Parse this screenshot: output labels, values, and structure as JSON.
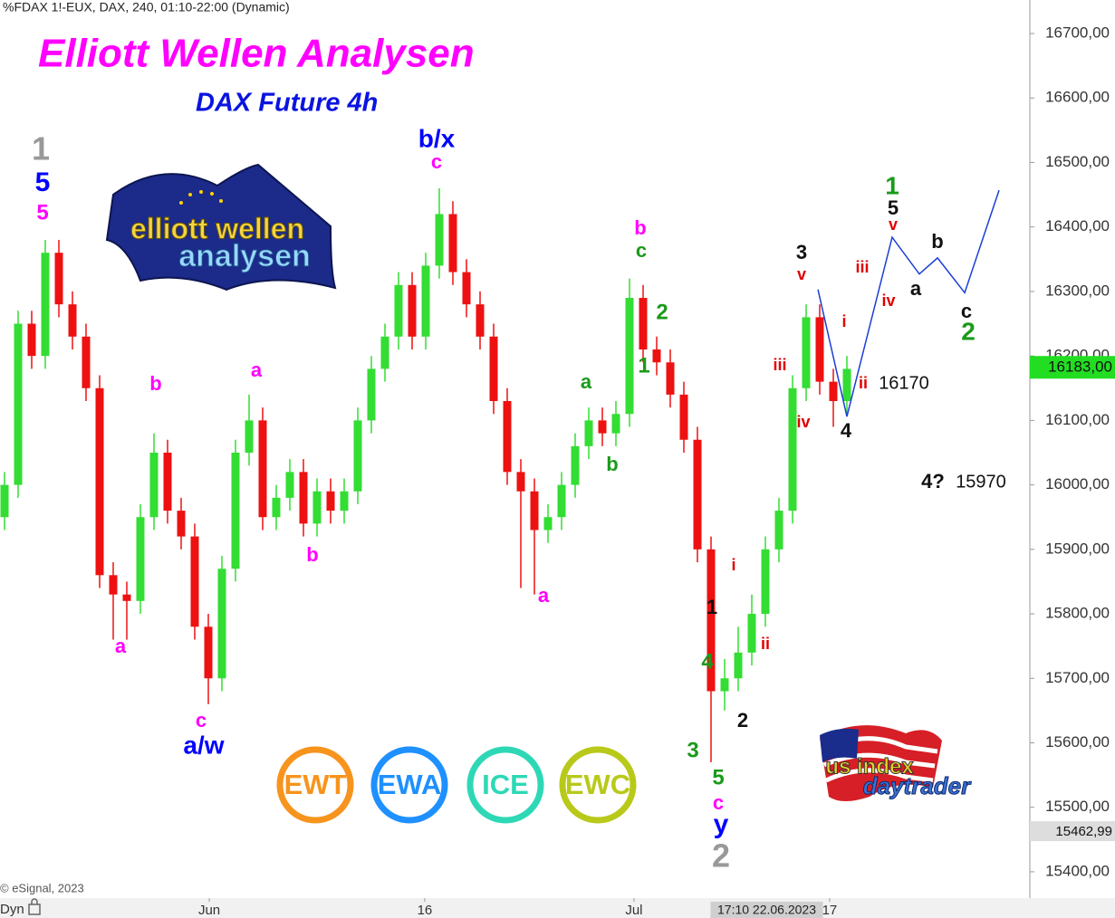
{
  "chart_data": {
    "type": "candlestick",
    "header": "%FDAX 1!-EUX, DAX, 240, 01:10-22:00 (Dynamic)",
    "title": "Elliott Wellen Analysen",
    "subtitle": "DAX Future 4h",
    "copyright": "© eSignal, 2023",
    "corner_label": "Dyn",
    "cursor_label": {
      "value": 56.1,
      "label": "17:10 22.06.2023"
    },
    "up_color": "#33dd33",
    "down_color": "#ee1111",
    "x": [
      0,
      1,
      2,
      3,
      4,
      5,
      6,
      7,
      8,
      9,
      10,
      11,
      12,
      13,
      14,
      15,
      16,
      17,
      18,
      19,
      20,
      21,
      22,
      23,
      24,
      25,
      26,
      27,
      28,
      29,
      30,
      31,
      32,
      33,
      34,
      35,
      36,
      37,
      38,
      39,
      40,
      41,
      42,
      43,
      44,
      45,
      46,
      47,
      48,
      49,
      50,
      51,
      52,
      53,
      54,
      55,
      56,
      57,
      58,
      59,
      60,
      61,
      62
    ],
    "open": [
      15950,
      16000,
      16250,
      16200,
      16360,
      16280,
      16230,
      16150,
      15860,
      15830,
      15820,
      15950,
      16050,
      15960,
      15920,
      15780,
      15700,
      15870,
      16050,
      16100,
      15950,
      15980,
      16020,
      15940,
      15990,
      15960,
      15990,
      16100,
      16180,
      16230,
      16310,
      16230,
      16340,
      16420,
      16330,
      16280,
      16230,
      16130,
      16020,
      15990,
      15930,
      15950,
      16000,
      16060,
      16100,
      16080,
      16110,
      16290,
      16210,
      16190,
      16140,
      16070,
      15900,
      15680,
      15700,
      15740,
      15800,
      15900,
      15960,
      16150,
      16260,
      16160,
      16130
    ],
    "high": [
      16020,
      16270,
      16270,
      16380,
      16380,
      16300,
      16250,
      16170,
      15880,
      15850,
      15970,
      16080,
      16070,
      15980,
      15940,
      15800,
      15890,
      16070,
      16140,
      16120,
      16000,
      16040,
      16040,
      16010,
      16010,
      16010,
      16120,
      16200,
      16250,
      16330,
      16330,
      16360,
      16460,
      16440,
      16350,
      16300,
      16250,
      16150,
      16040,
      16010,
      15970,
      16020,
      16080,
      16120,
      16120,
      16130,
      16320,
      16310,
      16230,
      16210,
      16160,
      16090,
      15920,
      15730,
      15780,
      15830,
      15920,
      15980,
      16170,
      16280,
      16280,
      16180,
      16200
    ],
    "low": [
      15930,
      15980,
      16180,
      16180,
      16260,
      16210,
      16130,
      15840,
      15760,
      15760,
      15800,
      15930,
      15940,
      15900,
      15760,
      15660,
      15680,
      15850,
      16030,
      15930,
      15930,
      15960,
      15920,
      15920,
      15940,
      15940,
      15970,
      16080,
      16160,
      16210,
      16210,
      16210,
      16320,
      16310,
      16260,
      16210,
      16110,
      16000,
      15840,
      15830,
      15910,
      15930,
      15980,
      16040,
      16060,
      16060,
      16090,
      16190,
      16170,
      16120,
      16050,
      15880,
      15570,
      15650,
      15680,
      15720,
      15780,
      15880,
      15940,
      16130,
      16140,
      16090,
      16110
    ],
    "close": [
      16000,
      16250,
      16200,
      16360,
      16280,
      16230,
      16150,
      15860,
      15830,
      15820,
      15950,
      16050,
      15960,
      15920,
      15780,
      15700,
      15870,
      16050,
      16100,
      15950,
      15980,
      16020,
      15940,
      15990,
      15960,
      15990,
      16100,
      16180,
      16230,
      16310,
      16230,
      16340,
      16420,
      16330,
      16280,
      16230,
      16130,
      16020,
      15990,
      15930,
      15950,
      16000,
      16060,
      16100,
      16080,
      16110,
      16290,
      16210,
      16190,
      16140,
      16070,
      15900,
      15680,
      15700,
      15740,
      15800,
      15900,
      15960,
      16150,
      16260,
      16160,
      16130,
      16180
    ],
    "projection": {
      "color": "#1a3fd6",
      "x": [
        59.87,
        62,
        65.33,
        67.33,
        68.67,
        70.67,
        73.2
      ],
      "values": [
        16303,
        16106,
        16384,
        16327,
        16352,
        16298,
        16457
      ]
    },
    "xlim": [
      -0.333,
      75.333
    ],
    "ylim": [
      15362,
      16752
    ],
    "xticks": [
      {
        "value": 15.07,
        "label": "Jun"
      },
      {
        "value": 30.93,
        "label": "16"
      },
      {
        "value": 46.33,
        "label": "Jul"
      },
      {
        "value": 60.73,
        "label": "17"
      }
    ],
    "yticks": [
      {
        "value": 15400,
        "label": "15400,00"
      },
      {
        "value": 15500,
        "label": "15500,00"
      },
      {
        "value": 15600,
        "label": "15600,00"
      },
      {
        "value": 15700,
        "label": "15700,00"
      },
      {
        "value": 15800,
        "label": "15800,00"
      },
      {
        "value": 15900,
        "label": "15900,00"
      },
      {
        "value": 16000,
        "label": "16000,00"
      },
      {
        "value": 16100,
        "label": "16100,00"
      },
      {
        "value": 16200,
        "label": "16200,00"
      },
      {
        "value": 16300,
        "label": "16300,00"
      },
      {
        "value": 16400,
        "label": "16400,00"
      },
      {
        "value": 16500,
        "label": "16500,00"
      },
      {
        "value": 16600,
        "label": "16600,00"
      },
      {
        "value": 16700,
        "label": "16700,00"
      }
    ],
    "price_tags": [
      {
        "value": 16183,
        "label": "16183,00",
        "color": "#22dd22"
      },
      {
        "value": 15462.99,
        "label": "15462,99",
        "color": "#dddddd"
      }
    ],
    "annotations": [
      {
        "text": "1",
        "color": "#999999"
      },
      {
        "text": "5",
        "color": "#0000ff"
      },
      {
        "text": "5",
        "color": "#ff00ff"
      },
      {
        "text": "b/x",
        "color": "#0000ff"
      },
      {
        "text": "c",
        "color": "#ff00ff"
      },
      {
        "text": "b",
        "color": "#ff00ff"
      },
      {
        "text": "a",
        "color": "#ff00ff"
      },
      {
        "text": "a",
        "color": "#ff00ff"
      },
      {
        "text": "b",
        "color": "#ff00ff"
      },
      {
        "text": "c",
        "color": "#ff00ff"
      },
      {
        "text": "a/w",
        "color": "#0000ff"
      },
      {
        "text": "a",
        "color": "#ff00ff"
      },
      {
        "text": "b",
        "color": "#ff00ff"
      },
      {
        "text": "c",
        "color": "#1a9a1a"
      },
      {
        "text": "2",
        "color": "#1a9a1a"
      },
      {
        "text": "1",
        "color": "#1a9a1a"
      },
      {
        "text": "a",
        "color": "#1a9a1a"
      },
      {
        "text": "b",
        "color": "#1a9a1a"
      },
      {
        "text": "1",
        "color": "#111111"
      },
      {
        "text": "4",
        "color": "#1a9a1a"
      },
      {
        "text": "2",
        "color": "#111111"
      },
      {
        "text": "3",
        "color": "#1a9a1a"
      },
      {
        "text": "5",
        "color": "#1a9a1a"
      },
      {
        "text": "c",
        "color": "#ff00ff"
      },
      {
        "text": "y",
        "color": "#0000ff"
      },
      {
        "text": "2",
        "color": "#999999"
      },
      {
        "text": "i",
        "color": "#e00000"
      },
      {
        "text": "ii",
        "color": "#e00000"
      },
      {
        "text": "iii",
        "color": "#e00000"
      },
      {
        "text": "iv",
        "color": "#e00000"
      },
      {
        "text": "3",
        "color": "#111111"
      },
      {
        "text": "v",
        "color": "#e00000"
      },
      {
        "text": "i",
        "color": "#e00000"
      },
      {
        "text": "ii",
        "color": "#e00000"
      },
      {
        "text": "16170",
        "color": "#111111"
      },
      {
        "text": "4",
        "color": "#111111"
      },
      {
        "text": "1",
        "color": "#1a9a1a"
      },
      {
        "text": "5",
        "color": "#111111"
      },
      {
        "text": "v",
        "color": "#e00000"
      },
      {
        "text": "iii",
        "color": "#e00000"
      },
      {
        "text": "iv",
        "color": "#e00000"
      },
      {
        "text": "a",
        "color": "#111111"
      },
      {
        "text": "b",
        "color": "#111111"
      },
      {
        "text": "c",
        "color": "#111111"
      },
      {
        "text": "2",
        "color": "#1a9a1a"
      },
      {
        "text": "4?",
        "color": "#111111"
      },
      {
        "text": "15970",
        "color": "#111111"
      }
    ],
    "logos": {
      "elliott": [
        "elliott wellen",
        "analysen"
      ],
      "badges": [
        {
          "text": "EWT",
          "color": "#f7941d"
        },
        {
          "text": "EWA",
          "color": "#1e90ff"
        },
        {
          "text": "ICE",
          "color": "#2ed8b6"
        },
        {
          "text": "EWC",
          "color": "#b8c919"
        }
      ],
      "usindex": [
        "us index",
        "daytrader"
      ]
    }
  }
}
